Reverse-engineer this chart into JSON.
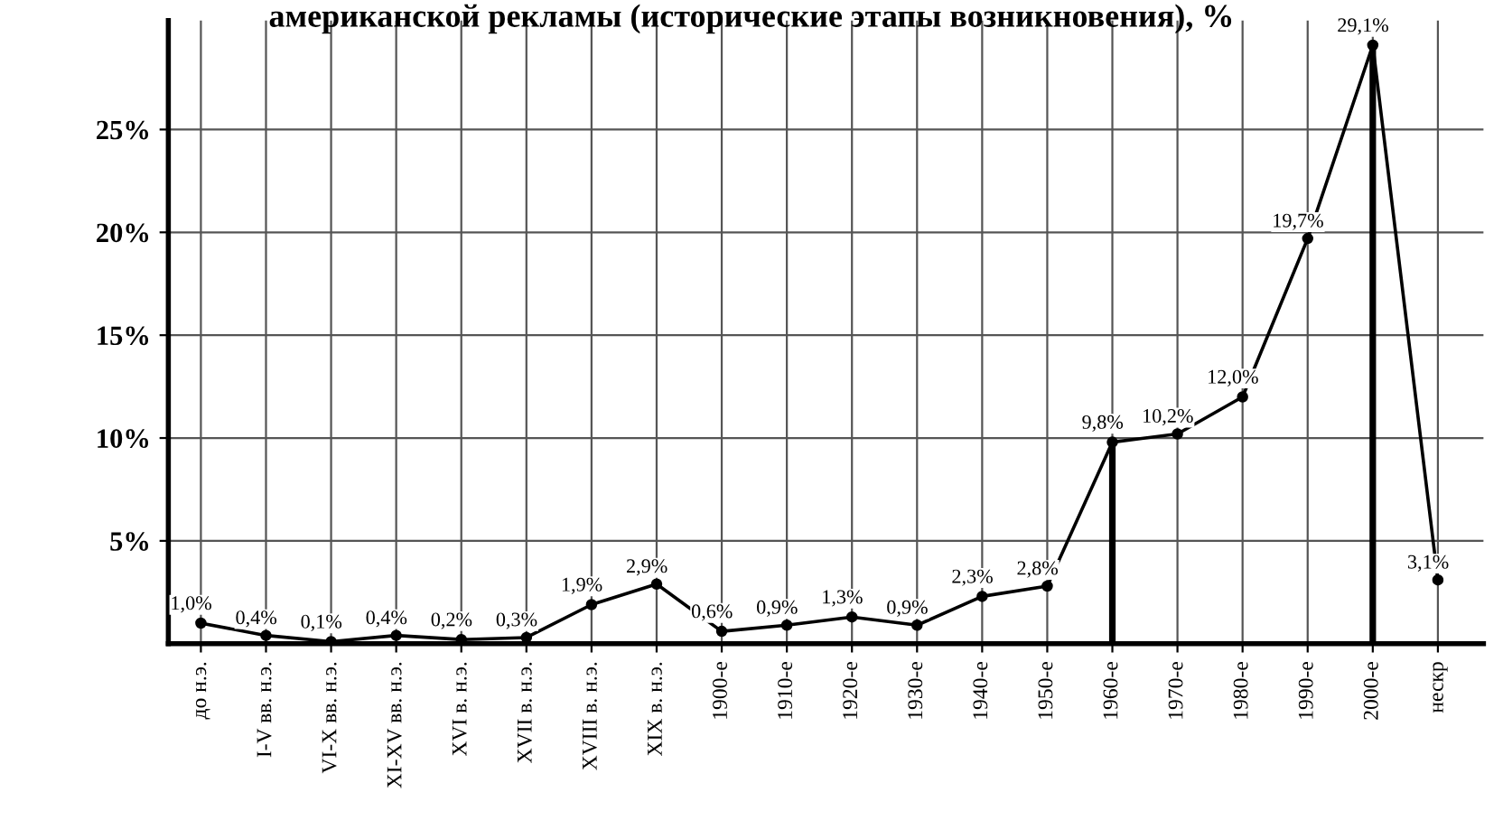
{
  "chart_data": {
    "type": "line",
    "title": "американской рекламы (исторические этапы возникновения), %",
    "categories": [
      "до н.э.",
      "I-V вв. н.э.",
      "VI-X вв. н.э.",
      "XI-XV вв. н.э.",
      "XVI в. н.э.",
      "XVII в. н.э.",
      "XVIII в. н.э.",
      "XIX в. н.э.",
      "1900-е",
      "1910-е",
      "1920-е",
      "1930-е",
      "1940-е",
      "1950-е",
      "1960-е",
      "1970-е",
      "1980-е",
      "1990-е",
      "2000-е",
      "нескр"
    ],
    "series": [
      {
        "color": "#000000",
        "values": [
          1.0,
          0.4,
          0.1,
          0.4,
          0.2,
          0.3,
          1.9,
          2.9,
          0.6,
          0.9,
          1.3,
          0.9,
          2.3,
          2.8,
          9.8,
          10.2,
          12.0,
          19.7,
          29.1,
          3.1
        ],
        "value_labels": [
          "1,0%",
          "0,4%",
          "0,1%",
          "0,4%",
          "0,2%",
          "0,3%",
          "1,9%",
          "2,9%",
          "0,6%",
          "0,9%",
          "1,3%",
          "0,9%",
          "2,3%",
          "2,8%",
          "9,8%",
          "10,2%",
          "12,0%",
          "19,7%",
          "29,1%",
          "3,1%"
        ]
      },
      {
        "type": "bar",
        "color": "#000000",
        "values": [
          null,
          null,
          null,
          null,
          null,
          null,
          null,
          null,
          null,
          null,
          null,
          null,
          null,
          null,
          9.8,
          null,
          null,
          null,
          29.1,
          null
        ]
      }
    ],
    "ylim": [
      0,
      30.3
    ],
    "yticks": [
      {
        "value": 5,
        "label": "5%"
      },
      {
        "value": 10,
        "label": "10%"
      },
      {
        "value": 15,
        "label": "15%"
      },
      {
        "value": 20,
        "label": "20%"
      },
      {
        "value": 25,
        "label": "25%"
      }
    ],
    "grid": true,
    "marker": "circle",
    "line_style": "solid"
  }
}
